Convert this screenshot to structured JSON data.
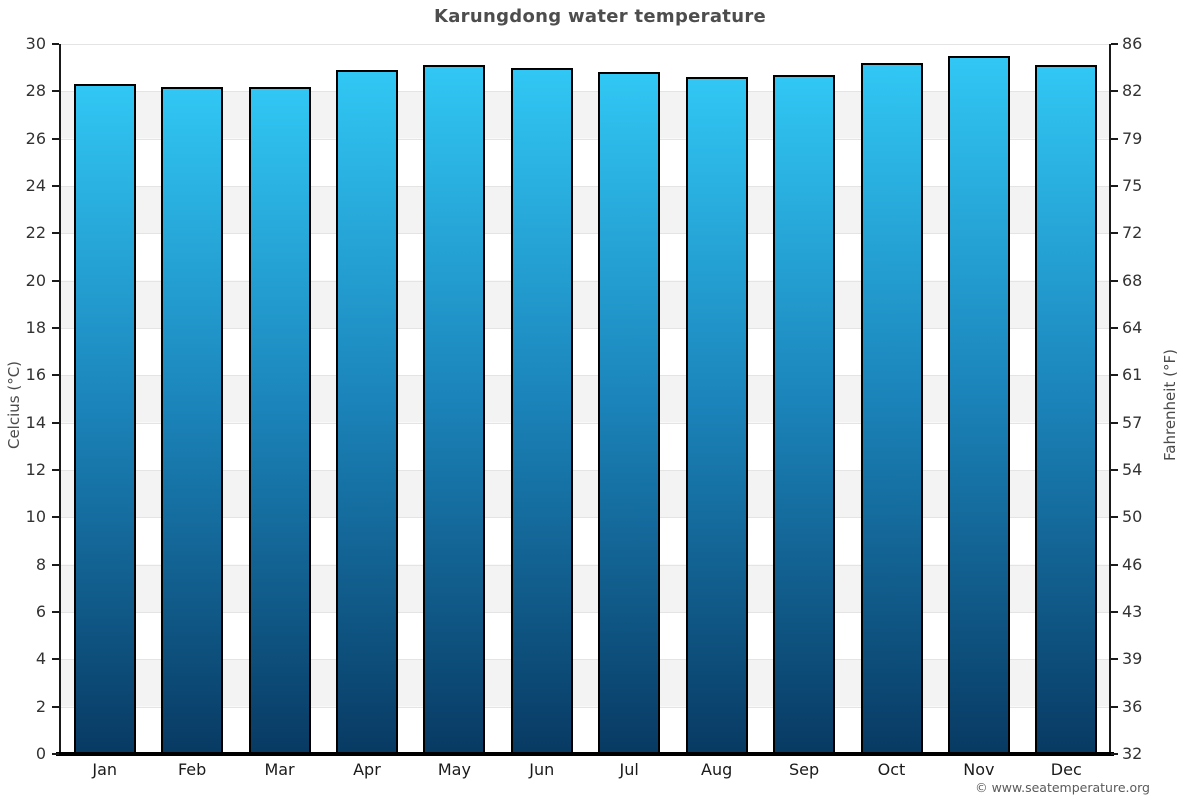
{
  "watermark": "© www.seatemperature.org",
  "chart_data": {
    "type": "bar",
    "title": "Karungdong water temperature",
    "categories": [
      "Jan",
      "Feb",
      "Mar",
      "Apr",
      "May",
      "Jun",
      "Jul",
      "Aug",
      "Sep",
      "Oct",
      "Nov",
      "Dec"
    ],
    "values": [
      28.3,
      28.2,
      28.2,
      28.9,
      29.1,
      29.0,
      28.8,
      28.6,
      28.7,
      29.2,
      29.5,
      29.1
    ],
    "unit": "°C",
    "ylabel_left": "Celcius (°C)",
    "ylabel_right": "Fahrenheit (°F)",
    "xlabel": "",
    "ylim": [
      0,
      30
    ],
    "yticks_celsius": [
      30,
      28,
      26,
      24,
      22,
      20,
      18,
      16,
      14,
      12,
      10,
      8,
      6,
      4,
      2,
      0
    ],
    "yticks_fahrenheit": [
      86,
      82,
      79,
      75,
      72,
      68,
      64,
      61,
      57,
      54,
      50,
      46,
      43,
      39,
      36,
      32
    ],
    "legend": "none",
    "grid": "banded-horizontal",
    "band_color": "#f3f3f3",
    "bar_gradient_top": "#31c7f4",
    "bar_gradient_bottom": "#083a63",
    "bar_border_color": "#000000",
    "title_color": "#4d4d4d"
  }
}
